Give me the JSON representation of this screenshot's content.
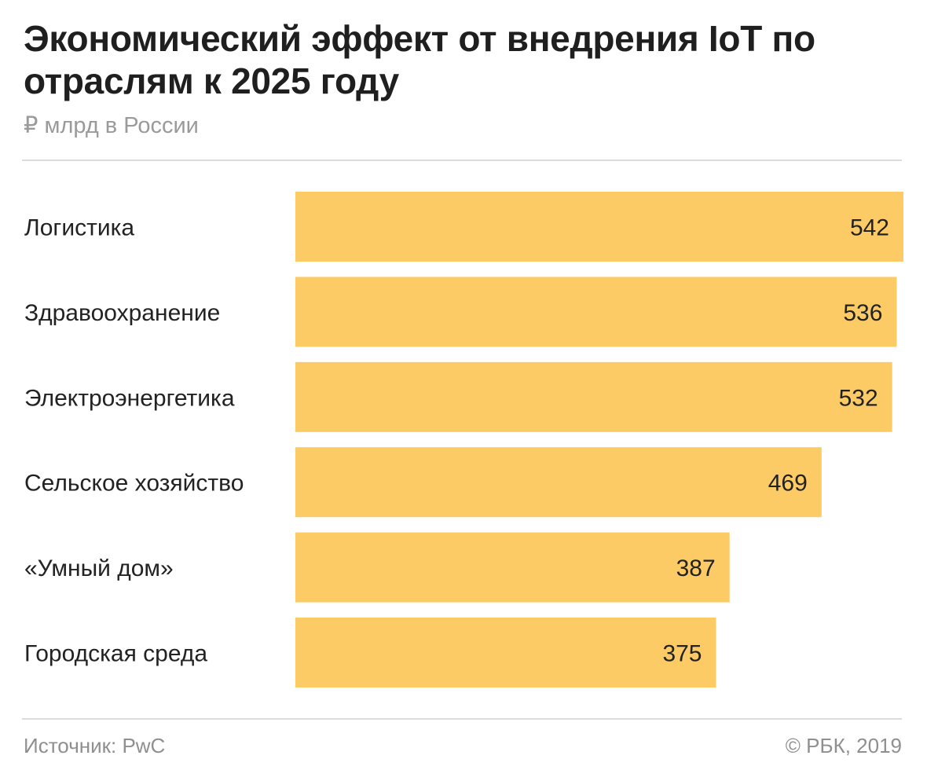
{
  "chart_data": {
    "type": "bar",
    "orientation": "horizontal",
    "title": "Экономический эффект от внедрения IoT по отраслям к 2025 году",
    "subtitle": "₽ млрд в России",
    "categories": [
      "Логистика",
      "Здравоохранение",
      "Электроэнергетика",
      "Сельское хозяйство",
      "«Умный дом»",
      "Городская среда"
    ],
    "values": [
      542,
      536,
      532,
      469,
      387,
      375
    ],
    "value_labels": [
      "542",
      "536",
      "532",
      "469",
      "387",
      "375"
    ],
    "xlim": [
      0,
      542
    ],
    "grid": false,
    "legend": "none",
    "bar_color": "#FDCB66"
  },
  "footer": {
    "source": "Источник: PwC",
    "copyright": "© РБК, 2019"
  }
}
